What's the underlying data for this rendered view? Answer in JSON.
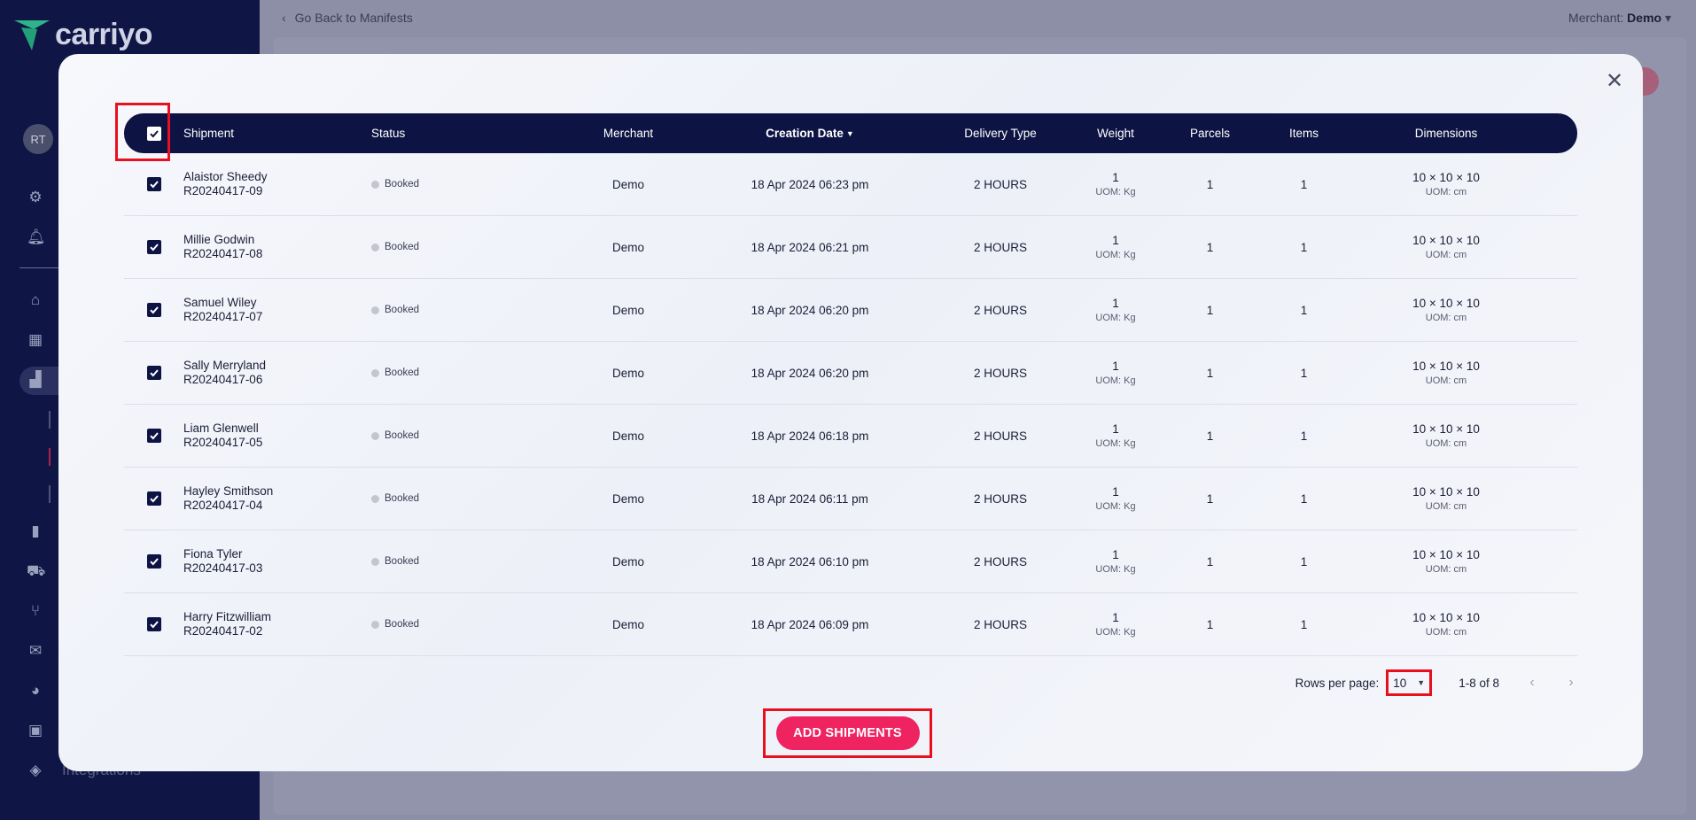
{
  "app": {
    "brand": "carriyo",
    "user_initials": "RT",
    "sidebar_partial_label": "Integrations",
    "back_link": "Go Back to Manifests",
    "merchant_label": "Merchant:",
    "merchant_value": "Demo"
  },
  "table": {
    "headers": {
      "shipment": "Shipment",
      "status": "Status",
      "merchant": "Merchant",
      "creation_date": "Creation Date",
      "delivery_type": "Delivery Type",
      "weight": "Weight",
      "parcels": "Parcels",
      "items": "Items",
      "dimensions": "Dimensions"
    },
    "sort_column": "creation_date",
    "sort_direction": "desc",
    "select_all_checked": true,
    "rows": [
      {
        "checked": true,
        "name": "Alaistor Sheedy",
        "id": "R20240417-09",
        "status": "Booked",
        "merchant": "Demo",
        "date": "18 Apr 2024 06:23 pm",
        "delivery_type": "2 HOURS",
        "weight": "1",
        "weight_uom": "UOM: Kg",
        "parcels": "1",
        "items": "1",
        "dims": "10 × 10 × 10",
        "dims_uom": "UOM: cm"
      },
      {
        "checked": true,
        "name": "Millie Godwin",
        "id": "R20240417-08",
        "status": "Booked",
        "merchant": "Demo",
        "date": "18 Apr 2024 06:21 pm",
        "delivery_type": "2 HOURS",
        "weight": "1",
        "weight_uom": "UOM: Kg",
        "parcels": "1",
        "items": "1",
        "dims": "10 × 10 × 10",
        "dims_uom": "UOM: cm"
      },
      {
        "checked": true,
        "name": "Samuel Wiley",
        "id": "R20240417-07",
        "status": "Booked",
        "merchant": "Demo",
        "date": "18 Apr 2024 06:20 pm",
        "delivery_type": "2 HOURS",
        "weight": "1",
        "weight_uom": "UOM: Kg",
        "parcels": "1",
        "items": "1",
        "dims": "10 × 10 × 10",
        "dims_uom": "UOM: cm"
      },
      {
        "checked": true,
        "name": "Sally Merryland",
        "id": "R20240417-06",
        "status": "Booked",
        "merchant": "Demo",
        "date": "18 Apr 2024 06:20 pm",
        "delivery_type": "2 HOURS",
        "weight": "1",
        "weight_uom": "UOM: Kg",
        "parcels": "1",
        "items": "1",
        "dims": "10 × 10 × 10",
        "dims_uom": "UOM: cm"
      },
      {
        "checked": true,
        "name": "Liam Glenwell",
        "id": "R20240417-05",
        "status": "Booked",
        "merchant": "Demo",
        "date": "18 Apr 2024 06:18 pm",
        "delivery_type": "2 HOURS",
        "weight": "1",
        "weight_uom": "UOM: Kg",
        "parcels": "1",
        "items": "1",
        "dims": "10 × 10 × 10",
        "dims_uom": "UOM: cm"
      },
      {
        "checked": true,
        "name": "Hayley Smithson",
        "id": "R20240417-04",
        "status": "Booked",
        "merchant": "Demo",
        "date": "18 Apr 2024 06:11 pm",
        "delivery_type": "2 HOURS",
        "weight": "1",
        "weight_uom": "UOM: Kg",
        "parcels": "1",
        "items": "1",
        "dims": "10 × 10 × 10",
        "dims_uom": "UOM: cm"
      },
      {
        "checked": true,
        "name": "Fiona Tyler",
        "id": "R20240417-03",
        "status": "Booked",
        "merchant": "Demo",
        "date": "18 Apr 2024 06:10 pm",
        "delivery_type": "2 HOURS",
        "weight": "1",
        "weight_uom": "UOM: Kg",
        "parcels": "1",
        "items": "1",
        "dims": "10 × 10 × 10",
        "dims_uom": "UOM: cm"
      },
      {
        "checked": true,
        "name": "Harry Fitzwilliam",
        "id": "R20240417-02",
        "status": "Booked",
        "merchant": "Demo",
        "date": "18 Apr 2024 06:09 pm",
        "delivery_type": "2 HOURS",
        "weight": "1",
        "weight_uom": "UOM: Kg",
        "parcels": "1",
        "items": "1",
        "dims": "10 × 10 × 10",
        "dims_uom": "UOM: cm"
      }
    ]
  },
  "pagination": {
    "rows_per_page_label": "Rows per page:",
    "rows_per_page_value": "10",
    "range_text": "1-8 of 8"
  },
  "actions": {
    "add_shipments_label": "ADD SHIPMENTS"
  },
  "colors": {
    "header_navy": "#0d1443",
    "sidebar_navy": "#0f1645",
    "accent_pink": "#ee2360",
    "annotation_red": "#e8101e",
    "status_dot_grey": "#c4c6ce"
  },
  "icons": {
    "close": "close-icon",
    "back": "chevron-left-icon",
    "sort": "sort-desc-icon",
    "checkbox": "checkbox-checked-icon",
    "rows_select": "caret-down-icon",
    "prev_page": "chevron-left-icon",
    "next_page": "chevron-right-icon"
  }
}
